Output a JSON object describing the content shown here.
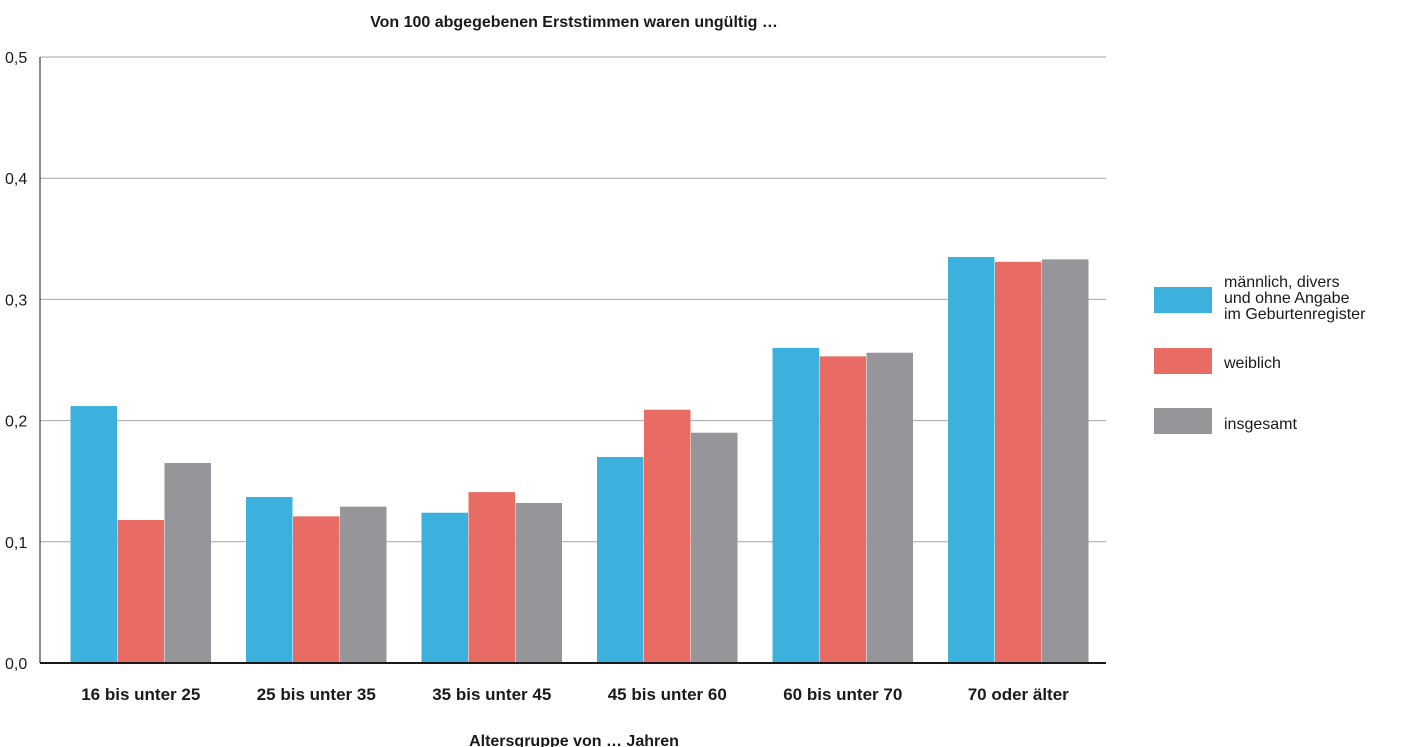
{
  "chart_data": {
    "type": "bar",
    "title": "Von 100 abgegebenen Erststimmen waren ungültig …",
    "xlabel": "Altersgruppe von … Jahren",
    "ylabel": "",
    "ylim": [
      0,
      0.5
    ],
    "yticks": [
      "0,0",
      "0,1",
      "0,2",
      "0,3",
      "0,4",
      "0,5"
    ],
    "grid": true,
    "legend_position": "right",
    "categories": [
      "16 bis unter 25",
      "25 bis unter 35",
      "35 bis unter 45",
      "45 bis unter 60",
      "60 bis unter 70",
      "70 oder älter"
    ],
    "series": [
      {
        "name": "männlich, divers und ohne Angabe im Geburtenregister",
        "legend_lines": [
          "männlich, divers",
          "und ohne Angabe",
          "im Geburtenregister"
        ],
        "color": "#3db1de",
        "values": [
          0.212,
          0.137,
          0.124,
          0.17,
          0.26,
          0.335
        ]
      },
      {
        "name": "weiblich",
        "legend_lines": [
          "weiblich"
        ],
        "color": "#e86c63",
        "values": [
          0.118,
          0.121,
          0.141,
          0.209,
          0.253,
          0.331
        ]
      },
      {
        "name": "insgesamt",
        "legend_lines": [
          "insgesamt"
        ],
        "color": "#96969a",
        "values": [
          0.165,
          0.129,
          0.132,
          0.19,
          0.256,
          0.333
        ]
      }
    ]
  }
}
